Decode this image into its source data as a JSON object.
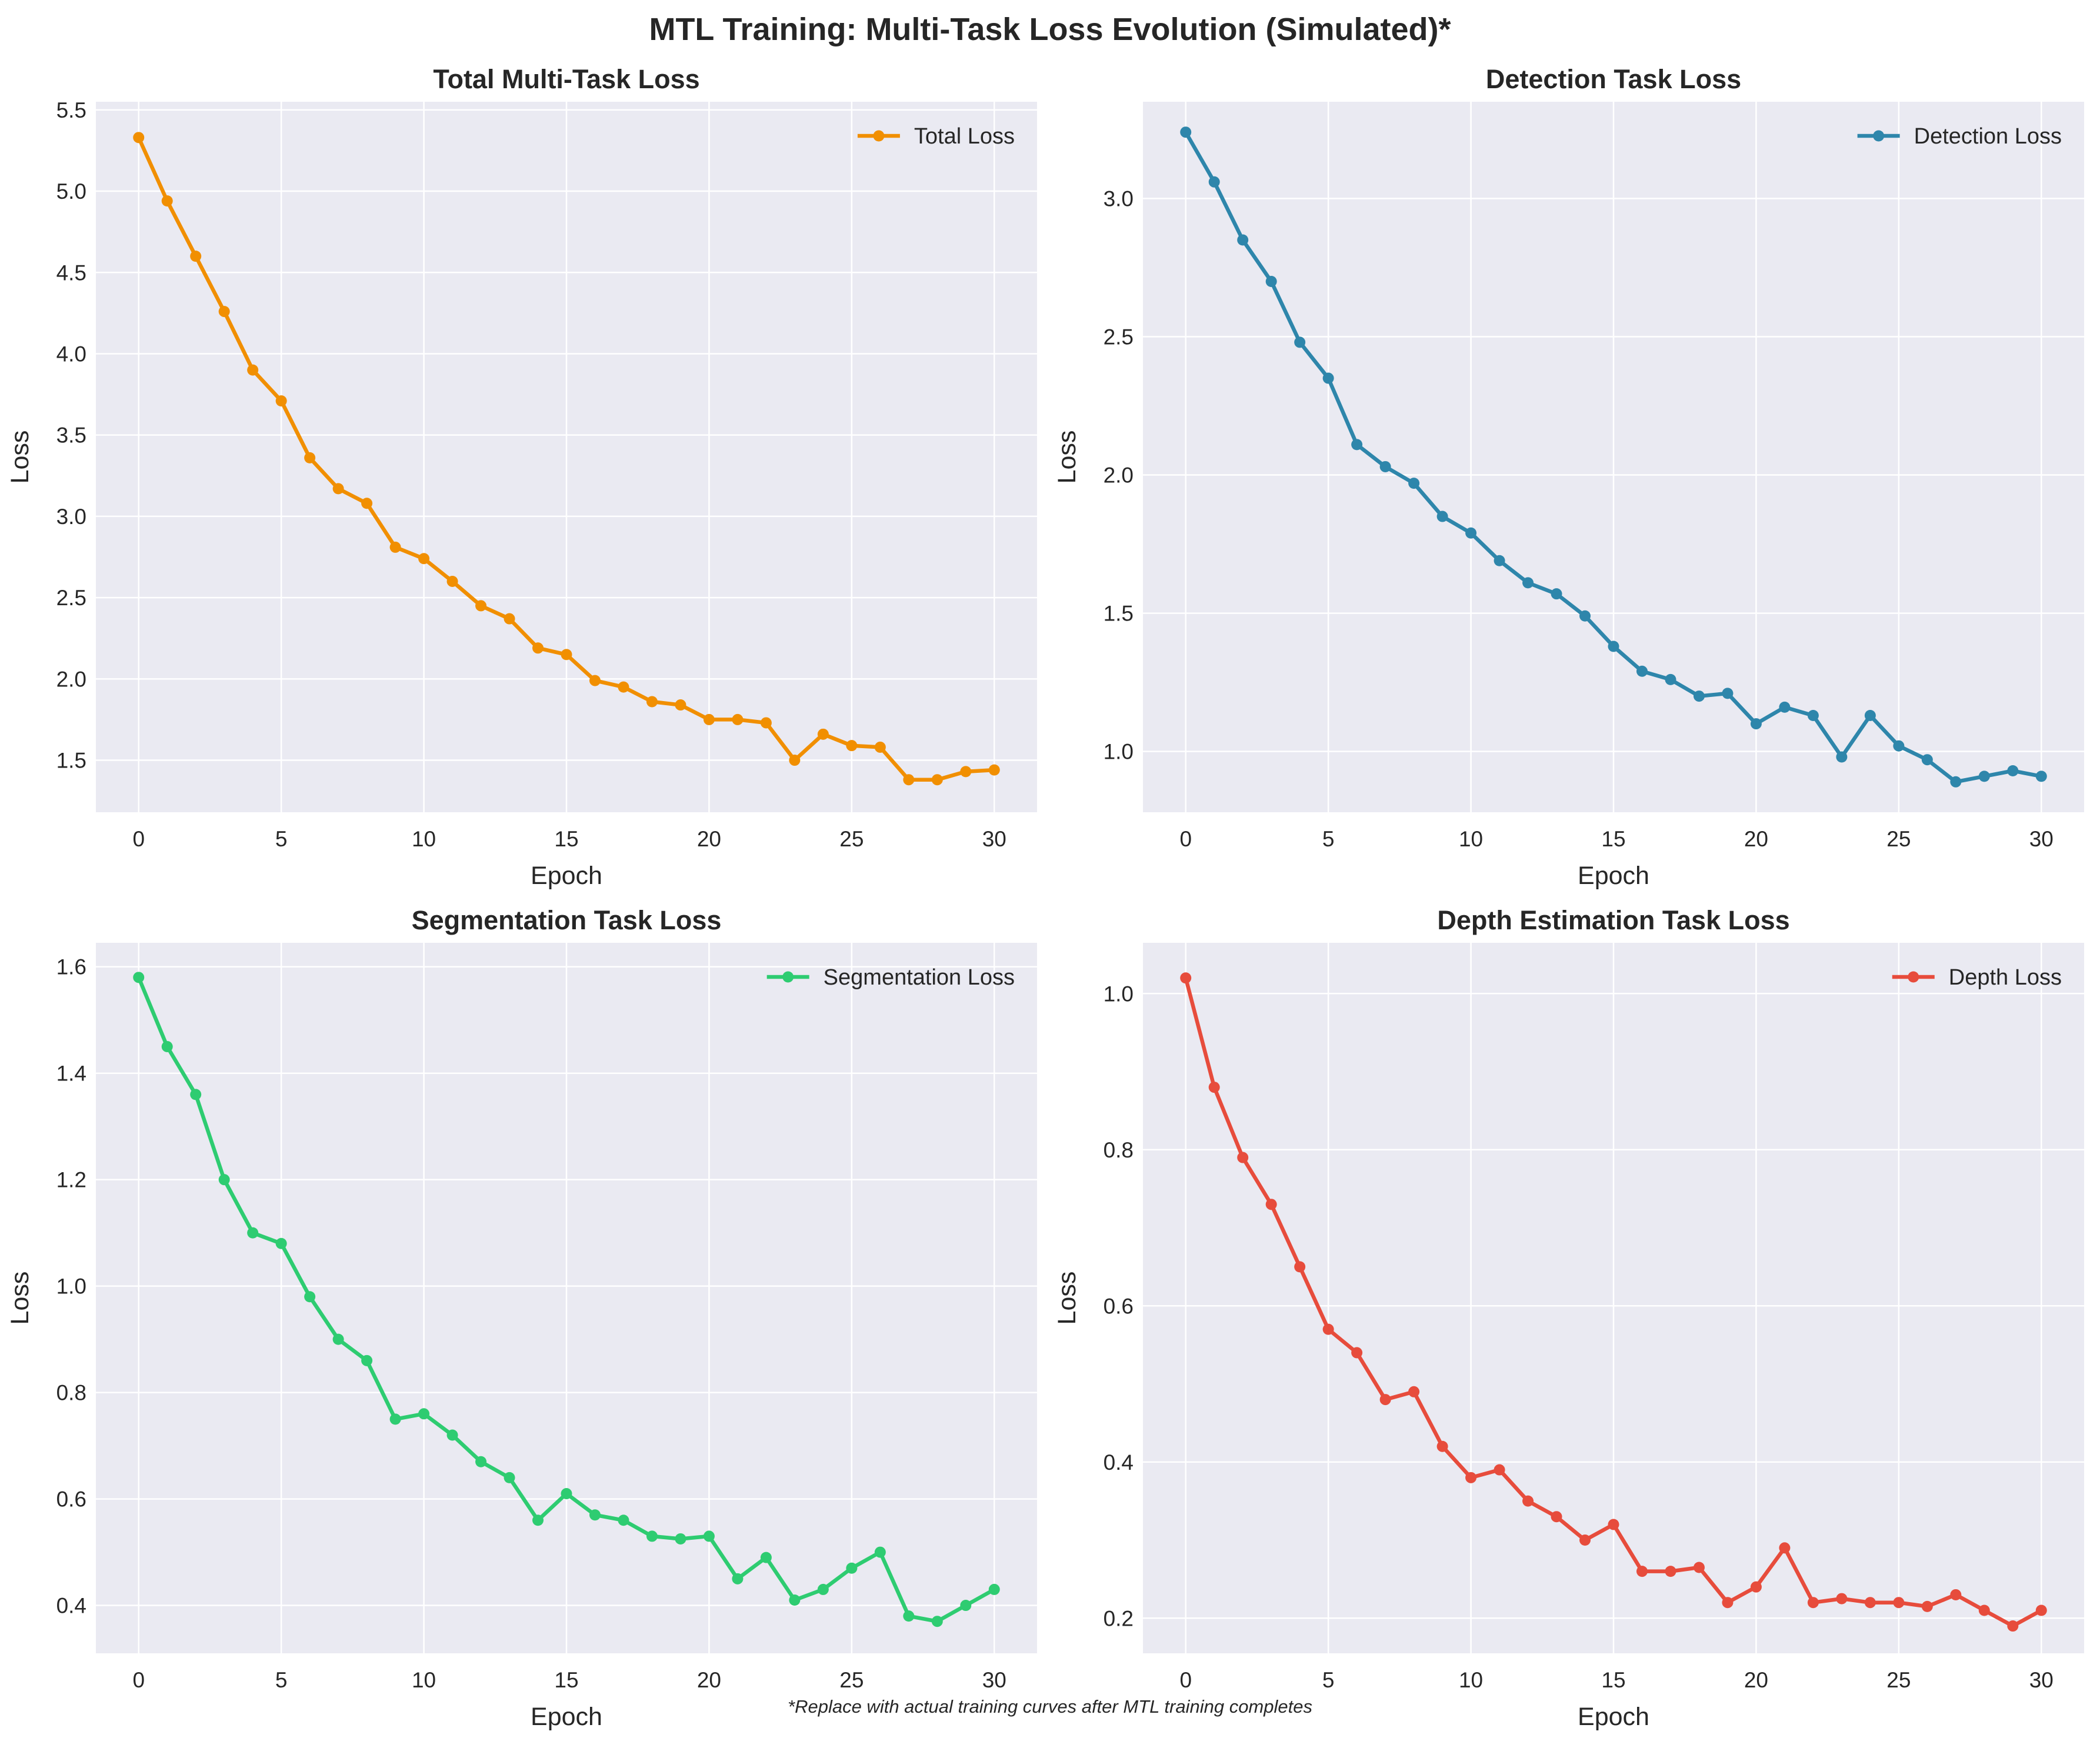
{
  "figure": {
    "title": "MTL Training: Multi-Task Loss Evolution (Simulated)*",
    "footnote": "*Replace with actual training curves after MTL training completes"
  },
  "chart_data": [
    {
      "type": "line",
      "title": "Total Multi-Task Loss",
      "xlabel": "Epoch",
      "ylabel": "Loss",
      "xlim": [
        -1.5,
        31.5
      ],
      "ylim": [
        1.18,
        5.55
      ],
      "xticks": [
        0,
        5,
        10,
        15,
        20,
        25,
        30
      ],
      "yticks": [
        1.5,
        2.0,
        2.5,
        3.0,
        3.5,
        4.0,
        4.5,
        5.0,
        5.5
      ],
      "tick_decimals": 1,
      "grid": true,
      "legend": "top-right",
      "series": [
        {
          "name": "Total Loss",
          "color": "#f18f01",
          "x": [
            0,
            1,
            2,
            3,
            4,
            5,
            6,
            7,
            8,
            9,
            10,
            11,
            12,
            13,
            14,
            15,
            16,
            17,
            18,
            19,
            20,
            21,
            22,
            23,
            24,
            25,
            26,
            27,
            28,
            29,
            30
          ],
          "y": [
            5.33,
            4.94,
            4.6,
            4.26,
            3.9,
            3.71,
            3.36,
            3.17,
            3.08,
            2.81,
            2.74,
            2.6,
            2.45,
            2.37,
            2.19,
            2.15,
            1.99,
            1.95,
            1.86,
            1.84,
            1.75,
            1.75,
            1.73,
            1.5,
            1.66,
            1.59,
            1.58,
            1.38,
            1.38,
            1.43,
            1.44
          ]
        }
      ]
    },
    {
      "type": "line",
      "title": "Detection Task Loss",
      "xlabel": "Epoch",
      "ylabel": "Loss",
      "xlim": [
        -1.5,
        31.5
      ],
      "ylim": [
        0.78,
        3.35
      ],
      "xticks": [
        0,
        5,
        10,
        15,
        20,
        25,
        30
      ],
      "yticks": [
        1.0,
        1.5,
        2.0,
        2.5,
        3.0
      ],
      "tick_decimals": 1,
      "grid": true,
      "legend": "top-right",
      "series": [
        {
          "name": "Detection Loss",
          "color": "#2e86ab",
          "x": [
            0,
            1,
            2,
            3,
            4,
            5,
            6,
            7,
            8,
            9,
            10,
            11,
            12,
            13,
            14,
            15,
            16,
            17,
            18,
            19,
            20,
            21,
            22,
            23,
            24,
            25,
            26,
            27,
            28,
            29,
            30
          ],
          "y": [
            3.24,
            3.06,
            2.85,
            2.7,
            2.48,
            2.35,
            2.11,
            2.03,
            1.97,
            1.85,
            1.79,
            1.69,
            1.61,
            1.57,
            1.49,
            1.38,
            1.29,
            1.26,
            1.2,
            1.21,
            1.1,
            1.16,
            1.13,
            0.98,
            1.13,
            1.02,
            0.97,
            0.89,
            0.91,
            0.93,
            0.91
          ]
        }
      ]
    },
    {
      "type": "line",
      "title": "Segmentation Task Loss",
      "xlabel": "Epoch",
      "ylabel": "Loss",
      "xlim": [
        -1.5,
        31.5
      ],
      "ylim": [
        0.31,
        1.645
      ],
      "xticks": [
        0,
        5,
        10,
        15,
        20,
        25,
        30
      ],
      "yticks": [
        0.4,
        0.6,
        0.8,
        1.0,
        1.2,
        1.4,
        1.6
      ],
      "tick_decimals": 1,
      "grid": true,
      "legend": "top-right",
      "series": [
        {
          "name": "Segmentation Loss",
          "color": "#2ecc71",
          "x": [
            0,
            1,
            2,
            3,
            4,
            5,
            6,
            7,
            8,
            9,
            10,
            11,
            12,
            13,
            14,
            15,
            16,
            17,
            18,
            19,
            20,
            21,
            22,
            23,
            24,
            25,
            26,
            27,
            28,
            29,
            30
          ],
          "y": [
            1.58,
            1.45,
            1.36,
            1.2,
            1.1,
            1.08,
            0.98,
            0.9,
            0.86,
            0.75,
            0.76,
            0.72,
            0.67,
            0.64,
            0.56,
            0.61,
            0.57,
            0.56,
            0.53,
            0.525,
            0.53,
            0.45,
            0.49,
            0.41,
            0.43,
            0.47,
            0.5,
            0.38,
            0.37,
            0.4,
            0.43
          ]
        }
      ]
    },
    {
      "type": "line",
      "title": "Depth Estimation Task Loss",
      "xlabel": "Epoch",
      "ylabel": "Loss",
      "xlim": [
        -1.5,
        31.5
      ],
      "ylim": [
        0.155,
        1.065
      ],
      "xticks": [
        0,
        5,
        10,
        15,
        20,
        25,
        30
      ],
      "yticks": [
        0.2,
        0.4,
        0.6,
        0.8,
        1.0
      ],
      "tick_decimals": 1,
      "grid": true,
      "legend": "top-right",
      "series": [
        {
          "name": "Depth Loss",
          "color": "#e74c3c",
          "x": [
            0,
            1,
            2,
            3,
            4,
            5,
            6,
            7,
            8,
            9,
            10,
            11,
            12,
            13,
            14,
            15,
            16,
            17,
            18,
            19,
            20,
            21,
            22,
            23,
            24,
            25,
            26,
            27,
            28,
            29,
            30
          ],
          "y": [
            1.02,
            0.88,
            0.79,
            0.73,
            0.65,
            0.57,
            0.54,
            0.48,
            0.49,
            0.42,
            0.38,
            0.39,
            0.35,
            0.33,
            0.3,
            0.32,
            0.26,
            0.26,
            0.265,
            0.22,
            0.24,
            0.29,
            0.22,
            0.225,
            0.22,
            0.22,
            0.215,
            0.23,
            0.21,
            0.19,
            0.21
          ]
        }
      ]
    }
  ]
}
